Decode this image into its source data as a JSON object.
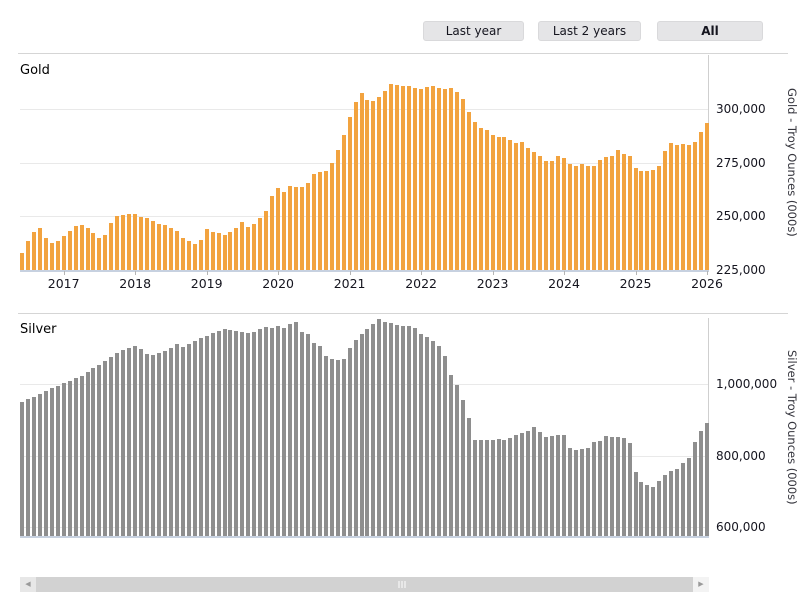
{
  "toolbar": {
    "buttons": [
      {
        "label": "Last year",
        "active": false
      },
      {
        "label": "Last 2 years",
        "active": false
      },
      {
        "label": "All",
        "active": true
      }
    ]
  },
  "scrollbar": {
    "left_arrow": "◀",
    "right_arrow": "▶",
    "grip": "|||"
  },
  "colors": {
    "gold_bar": "#F2A33F",
    "silver_bar": "#8E8E8E",
    "gridline": "#E9E9E9",
    "baseline": "#C7D1E0"
  },
  "chart_data": [
    {
      "type": "bar",
      "title": "Gold",
      "ylabel": "Gold - Troy Ounces (000s)",
      "bar_color": "#F2A33F",
      "ylim": [
        225000,
        325000
      ],
      "ytick_values": [
        225000,
        250000,
        275000,
        300000
      ],
      "ytick_labels": [
        "225,000",
        "250,000",
        "275,000",
        "300,000"
      ],
      "gridline_values": [
        250000,
        275000,
        300000
      ],
      "xtick_labels": [
        "2017",
        "2018",
        "2019",
        "2020",
        "2021",
        "2022",
        "2023",
        "2024",
        "2025",
        "2026"
      ],
      "xtick_indices": [
        7,
        19,
        31,
        43,
        55,
        67,
        79,
        91,
        103,
        115
      ],
      "show_xticks": true,
      "values": [
        233000,
        238500,
        242500,
        244500,
        240000,
        237500,
        238500,
        241000,
        243000,
        245500,
        246000,
        244500,
        242000,
        240000,
        241500,
        247000,
        250000,
        250500,
        251000,
        251000,
        249500,
        249000,
        248000,
        246500,
        246000,
        244500,
        243000,
        240000,
        238500,
        237000,
        239000,
        244000,
        242500,
        242000,
        241500,
        242500,
        244500,
        247500,
        245000,
        246500,
        249000,
        252500,
        259500,
        263000,
        261500,
        264000,
        263500,
        263500,
        265500,
        269500,
        270500,
        271000,
        275000,
        281000,
        288000,
        296000,
        303000,
        307500,
        304000,
        303500,
        305500,
        308500,
        311500,
        311000,
        310500,
        310500,
        309500,
        309000,
        310000,
        310500,
        309500,
        309000,
        309500,
        308000,
        304500,
        298500,
        294000,
        291000,
        290000,
        288000,
        287000,
        287000,
        285500,
        284000,
        284500,
        282000,
        280000,
        278000,
        275500,
        275500,
        278000,
        277000,
        274500,
        273500,
        274500,
        273500,
        273500,
        276000,
        277500,
        278000,
        281000,
        279000,
        278000,
        272500,
        271000,
        271000,
        271500,
        273500,
        280500,
        284000,
        283000,
        283500,
        283000,
        284500,
        289000,
        293500
      ]
    },
    {
      "type": "bar",
      "title": "Silver",
      "ylabel": "Silver - Troy Ounces (000s)",
      "bar_color": "#8E8E8E",
      "ylim": [
        575000,
        1185000
      ],
      "ytick_values": [
        600000,
        800000,
        1000000
      ],
      "ytick_labels": [
        "600,000",
        "800,000",
        "1,000,000"
      ],
      "gridline_values": [
        600000,
        800000,
        1000000
      ],
      "xtick_labels": [],
      "xtick_indices": [],
      "show_xticks": false,
      "values": [
        950000,
        958000,
        963000,
        972000,
        980000,
        988000,
        995000,
        1002000,
        1009000,
        1016000,
        1024000,
        1034000,
        1044000,
        1055000,
        1066000,
        1076000,
        1086000,
        1095000,
        1102000,
        1106000,
        1098000,
        1085000,
        1082000,
        1088000,
        1094000,
        1100000,
        1112000,
        1105000,
        1112000,
        1120000,
        1128000,
        1135000,
        1142000,
        1150000,
        1155000,
        1152000,
        1148000,
        1145000,
        1143000,
        1147000,
        1155000,
        1160000,
        1158000,
        1162000,
        1158000,
        1168000,
        1173000,
        1146000,
        1141000,
        1115000,
        1108000,
        1078000,
        1071000,
        1068000,
        1071000,
        1101000,
        1124000,
        1141000,
        1155000,
        1168000,
        1183000,
        1173000,
        1171000,
        1166000,
        1162000,
        1164000,
        1158000,
        1141000,
        1132000,
        1122000,
        1108000,
        1080000,
        1025000,
        997000,
        955000,
        905000,
        845000,
        843000,
        845000,
        844000,
        846000,
        845000,
        850000,
        858000,
        862000,
        868000,
        880000,
        865000,
        852000,
        856000,
        858000,
        858000,
        820000,
        817000,
        819000,
        821000,
        838000,
        841000,
        855000,
        853000,
        852000,
        850000,
        835000,
        753000,
        725000,
        718000,
        713000,
        730000,
        745000,
        757000,
        763000,
        780000,
        792000,
        838000,
        870000,
        890000
      ]
    }
  ]
}
